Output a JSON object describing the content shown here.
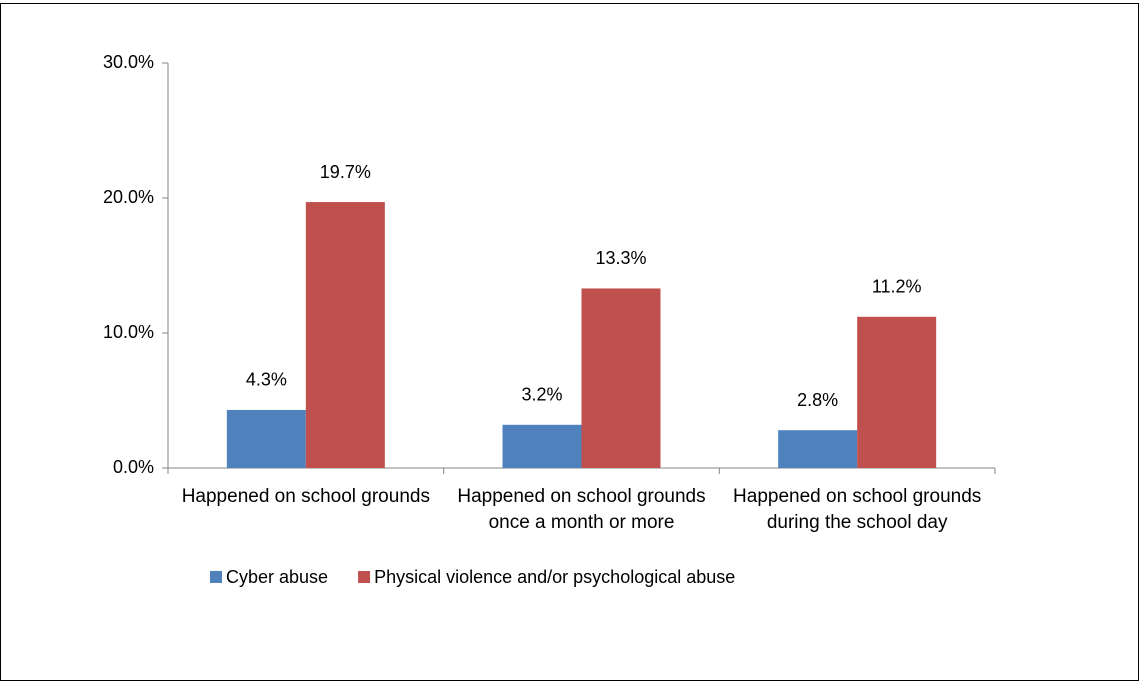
{
  "chart_data": {
    "type": "bar",
    "categories": [
      "Happened on school grounds",
      "Happened on school grounds once a month or more",
      "Happened on school grounds during the school day"
    ],
    "series": [
      {
        "name": "Cyber abuse",
        "color": "#4f81bd",
        "values": [
          4.3,
          3.2,
          2.8
        ],
        "value_labels": [
          "4.3%",
          "3.2%",
          "2.8%"
        ]
      },
      {
        "name": "Physical violence and/or psychological abuse",
        "color": "#c0504d",
        "values": [
          19.7,
          13.3,
          11.2
        ],
        "value_labels": [
          "19.7%",
          "13.3%",
          "11.2%"
        ]
      }
    ],
    "ylim": [
      0,
      30
    ],
    "yticks": [
      {
        "value": 0,
        "label": "0.0%"
      },
      {
        "value": 10,
        "label": "10.0%"
      },
      {
        "value": 20,
        "label": "20.0%"
      },
      {
        "value": 30,
        "label": "30.0%"
      }
    ],
    "legend": "bottom"
  }
}
